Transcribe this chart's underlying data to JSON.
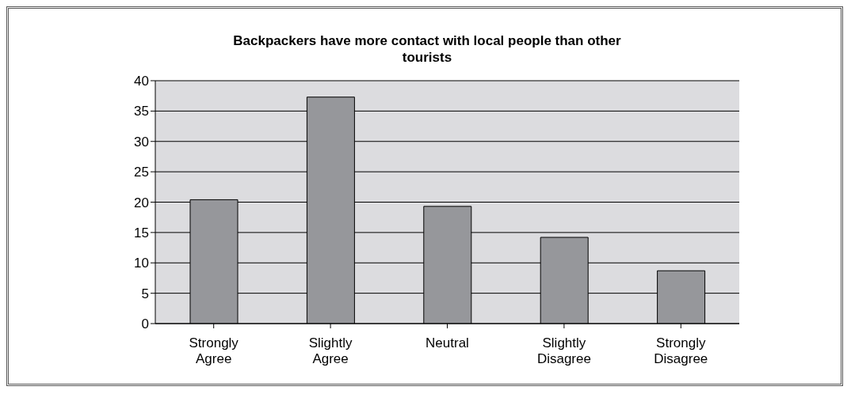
{
  "chart_data": {
    "type": "bar",
    "title": "Backpackers have more contact with local people than other tourists",
    "categories": [
      "Strongly Agree",
      "Slightly Agree",
      "Neutral",
      "Slightly Disagree",
      "Strongly Disagree"
    ],
    "values": [
      20.4,
      37.3,
      19.3,
      14.2,
      8.7
    ],
    "color": "#96979b",
    "ylim": [
      0,
      40
    ],
    "yticks": [
      0,
      5,
      10,
      15,
      20,
      25,
      30,
      35,
      40
    ],
    "grid": "y",
    "legend": false
  }
}
